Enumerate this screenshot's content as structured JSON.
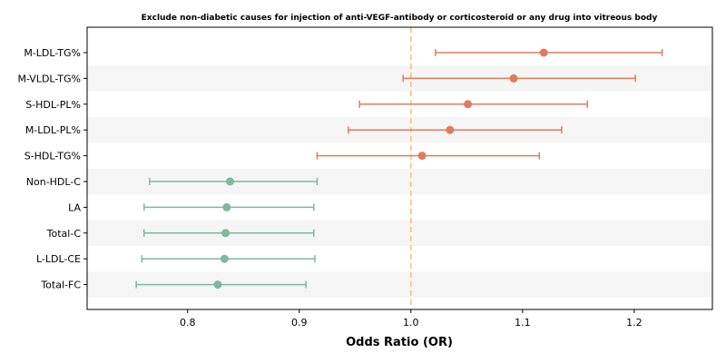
{
  "chart_data": {
    "type": "forest",
    "title": "Exclude non-diabetic causes for injection of anti-VEGF-antibody or corticosteroid or any drug into vitreous body",
    "xlabel": "Odds Ratio (OR)",
    "ylabel": "",
    "xlim": [
      0.71,
      1.27
    ],
    "xticks": [
      0.8,
      0.9,
      1.0,
      1.1,
      1.2
    ],
    "xtick_labels": [
      "0.8",
      "0.9",
      "1.0",
      "1.1",
      "1.2"
    ],
    "reference_line": 1.0,
    "grid": false,
    "row_striping": true,
    "colors": {
      "positive": "#E07B5F",
      "negative": "#7FB89E",
      "reference": "#F5C07A",
      "stripe": "#F5F5F5"
    },
    "rows": [
      {
        "label": "M-LDL-TG%",
        "or": 1.119,
        "lower": 1.022,
        "upper": 1.225,
        "group": "positive"
      },
      {
        "label": "M-VLDL-TG%",
        "or": 1.092,
        "lower": 0.993,
        "upper": 1.201,
        "group": "positive"
      },
      {
        "label": "S-HDL-PL%",
        "or": 1.051,
        "lower": 0.954,
        "upper": 1.158,
        "group": "positive"
      },
      {
        "label": "M-LDL-PL%",
        "or": 1.035,
        "lower": 0.944,
        "upper": 1.135,
        "group": "positive"
      },
      {
        "label": "S-HDL-TG%",
        "or": 1.01,
        "lower": 0.916,
        "upper": 1.115,
        "group": "positive"
      },
      {
        "label": "Non-HDL-C",
        "or": 0.838,
        "lower": 0.766,
        "upper": 0.916,
        "group": "negative"
      },
      {
        "label": "LA",
        "or": 0.835,
        "lower": 0.761,
        "upper": 0.913,
        "group": "negative"
      },
      {
        "label": "Total-C",
        "or": 0.834,
        "lower": 0.761,
        "upper": 0.913,
        "group": "negative"
      },
      {
        "label": "L-LDL-CE",
        "or": 0.833,
        "lower": 0.759,
        "upper": 0.914,
        "group": "negative"
      },
      {
        "label": "Total-FC",
        "or": 0.827,
        "lower": 0.754,
        "upper": 0.906,
        "group": "negative"
      }
    ]
  }
}
